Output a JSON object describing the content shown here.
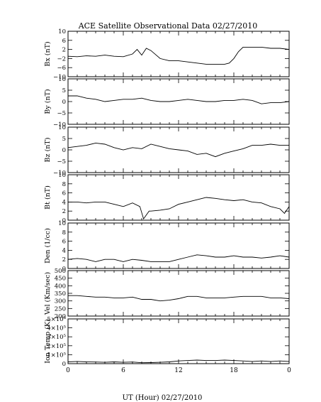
{
  "title": "ACE Satellite Observational Data   02/27/2010",
  "xlabel": "UT (Hour)   02/27/2010",
  "xticks": [
    "0",
    "6",
    "12",
    "18",
    "0"
  ],
  "chart_data": [
    {
      "type": "line",
      "ylabel": "Bx (nT)",
      "ylim": [
        -10,
        10
      ],
      "yticks": [
        "10",
        "6",
        "2",
        "−2",
        "−6",
        "−10"
      ],
      "ytick_values": [
        10,
        6,
        2,
        -2,
        -6,
        -10
      ],
      "x": [
        0,
        1,
        2,
        3,
        4,
        5,
        6,
        7,
        7.5,
        8,
        8.5,
        9,
        10,
        11,
        12,
        13,
        14,
        15,
        16,
        17,
        17.5,
        18,
        18.5,
        19,
        20,
        21,
        22,
        23,
        24
      ],
      "series": [
        {
          "values": [
            -1,
            -1.2,
            -0.8,
            -1,
            -0.5,
            -1,
            -1.2,
            0,
            2,
            -0.5,
            2.5,
            1.5,
            -2,
            -3,
            -3,
            -3.5,
            -4,
            -4.5,
            -4.5,
            -4.5,
            -4,
            -2,
            1,
            3,
            3,
            3,
            2.5,
            2.5,
            2
          ]
        }
      ]
    },
    {
      "type": "line",
      "ylabel": "By (nT)",
      "ylim": [
        -10,
        10
      ],
      "yticks": [
        "10",
        "5",
        "0",
        "−5",
        "−10"
      ],
      "ytick_values": [
        10,
        5,
        0,
        -5,
        -10
      ],
      "x": [
        0,
        1,
        2,
        3,
        4,
        5,
        6,
        7,
        8,
        9,
        10,
        11,
        12,
        13,
        14,
        15,
        16,
        17,
        18,
        19,
        20,
        21,
        22,
        23,
        24
      ],
      "series": [
        {
          "values": [
            2.5,
            2.5,
            1.5,
            1,
            0,
            0.5,
            1,
            1,
            1.5,
            0.5,
            0,
            0,
            0.5,
            1,
            0.5,
            0,
            0,
            0.5,
            0.5,
            1,
            0.5,
            -1,
            -0.5,
            -0.5,
            0
          ]
        }
      ]
    },
    {
      "type": "line",
      "ylabel": "Bz (nT)",
      "ylim": [
        -10,
        10
      ],
      "yticks": [
        "10",
        "5",
        "0",
        "−5",
        "−10"
      ],
      "ytick_values": [
        10,
        5,
        0,
        -5,
        -10
      ],
      "x": [
        0,
        1,
        2,
        3,
        4,
        5,
        6,
        7,
        8,
        9,
        10,
        11,
        12,
        13,
        14,
        15,
        16,
        17,
        18,
        19,
        20,
        21,
        22,
        23,
        24
      ],
      "series": [
        {
          "values": [
            1,
            1.5,
            2,
            3,
            2.5,
            1,
            0,
            1,
            0.5,
            2.5,
            1.5,
            0.5,
            0,
            -0.5,
            -2,
            -1.5,
            -3,
            -1.5,
            -0.5,
            0.5,
            2,
            2,
            2.5,
            2,
            2
          ]
        }
      ]
    },
    {
      "type": "line",
      "ylabel": "Bt (nT)",
      "ylim": [
        0,
        10
      ],
      "yticks": [
        "10",
        "8",
        "6",
        "4",
        "2",
        "0"
      ],
      "ytick_values": [
        10,
        8,
        6,
        4,
        2,
        0
      ],
      "x": [
        0,
        1,
        2,
        3,
        4,
        5,
        6,
        7,
        7.8,
        8.2,
        8.8,
        9,
        10,
        11,
        12,
        13,
        14,
        15,
        16,
        17,
        18,
        19,
        20,
        21,
        22,
        23,
        23.5,
        24
      ],
      "series": [
        {
          "values": [
            4,
            4,
            3.8,
            4,
            4,
            3.5,
            3,
            3.8,
            3,
            0.3,
            2,
            2,
            2.2,
            2.5,
            3.5,
            4,
            4.5,
            5,
            4.8,
            4.5,
            4.3,
            4.5,
            4,
            3.8,
            3,
            2.5,
            1.5,
            3
          ]
        }
      ]
    },
    {
      "type": "line",
      "ylabel": "Den (1/cc)",
      "ylim": [
        0,
        10
      ],
      "yticks": [
        "10",
        "8",
        "6",
        "4",
        "2",
        "0"
      ],
      "ytick_values": [
        10,
        8,
        6,
        4,
        2,
        0
      ],
      "x": [
        0,
        1,
        2,
        3,
        4,
        5,
        6,
        7,
        8,
        9,
        10,
        11,
        12,
        13,
        14,
        15,
        16,
        17,
        18,
        19,
        20,
        21,
        22,
        23,
        24
      ],
      "series": [
        {
          "values": [
            2,
            2.2,
            2,
            1.5,
            2,
            2,
            1.5,
            2,
            1.8,
            1.5,
            1.5,
            1.5,
            2,
            2.5,
            3,
            2.8,
            2.5,
            2.5,
            2.8,
            2.5,
            2.5,
            2.3,
            2.5,
            2.8,
            2.5
          ]
        }
      ]
    },
    {
      "type": "line",
      "ylabel": "Vel (Km/sec)",
      "ylim": [
        200,
        500
      ],
      "yticks": [
        "500",
        "450",
        "400",
        "350",
        "300",
        "250",
        "200"
      ],
      "ytick_values": [
        500,
        450,
        400,
        350,
        300,
        250,
        200
      ],
      "x": [
        0,
        1,
        2,
        3,
        4,
        5,
        6,
        7,
        8,
        9,
        10,
        11,
        12,
        13,
        14,
        15,
        16,
        17,
        18,
        19,
        20,
        21,
        22,
        23,
        24
      ],
      "series": [
        {
          "values": [
            335,
            335,
            330,
            325,
            325,
            320,
            320,
            325,
            310,
            310,
            300,
            305,
            315,
            330,
            330,
            320,
            320,
            320,
            325,
            330,
            330,
            330,
            320,
            320,
            315
          ]
        }
      ]
    },
    {
      "type": "line",
      "ylabel": "Ion Temp (K)",
      "ylim": [
        0,
        500000
      ],
      "yticks": [
        "5×10⁵",
        "4×10⁵",
        "3×10⁵",
        "2×10⁵",
        "1×10⁵",
        "0"
      ],
      "ytick_values": [
        500000,
        400000,
        300000,
        200000,
        100000,
        0
      ],
      "x": [
        0,
        1,
        2,
        3,
        4,
        5,
        6,
        7,
        8,
        9,
        10,
        11,
        12,
        13,
        14,
        15,
        16,
        17,
        18,
        19,
        20,
        21,
        22,
        23,
        24
      ],
      "series": [
        {
          "values": [
            20000,
            25000,
            20000,
            18000,
            15000,
            20000,
            15000,
            18000,
            10000,
            12000,
            15000,
            20000,
            30000,
            35000,
            40000,
            35000,
            35000,
            40000,
            35000,
            30000,
            25000,
            30000,
            25000,
            30000,
            25000
          ]
        }
      ]
    }
  ]
}
